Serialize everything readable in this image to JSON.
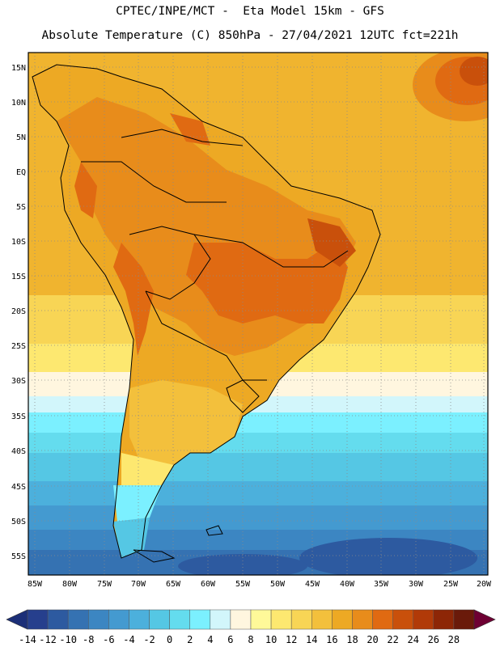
{
  "header": {
    "line1": "CPTEC/INPE/MCT -  Eta Model 15km - GFS",
    "line2": "Absolute Temperature (C) 850hPa - 27/04/2021 12UTC fct=221h"
  },
  "map": {
    "region": "South America",
    "lat_labels": [
      "15N",
      "10N",
      "5N",
      "EQ",
      "5S",
      "10S",
      "15S",
      "20S",
      "25S",
      "30S",
      "35S",
      "40S",
      "45S",
      "50S",
      "55S"
    ],
    "lon_labels": [
      "85W",
      "80W",
      "75W",
      "70W",
      "65W",
      "60W",
      "55W",
      "50W",
      "45W",
      "40W",
      "35W",
      "30W",
      "25W",
      "20W"
    ],
    "gridlines": true
  },
  "colorbar": {
    "tick_labels": [
      "-14",
      "-12",
      "-10",
      "-8",
      "-6",
      "-4",
      "-2",
      "0",
      "2",
      "4",
      "6",
      "8",
      "10",
      "12",
      "14",
      "16",
      "18",
      "20",
      "22",
      "24",
      "26",
      "28"
    ],
    "colors": [
      "#263f8d",
      "#2d5aa0",
      "#3572b2",
      "#3c86c2",
      "#449ad0",
      "#4cb0dc",
      "#55c7e4",
      "#64dcee",
      "#7bf0ff",
      "#d2f6fb",
      "#fff6df",
      "#fff999",
      "#fde870",
      "#f8d555",
      "#f3c03c",
      "#eda924",
      "#e88c1b",
      "#e06a12",
      "#c9500b",
      "#b13a08",
      "#8d2606",
      "#6a1a0a"
    ],
    "under_color": "#1c2f78",
    "over_color": "#6e0033"
  }
}
